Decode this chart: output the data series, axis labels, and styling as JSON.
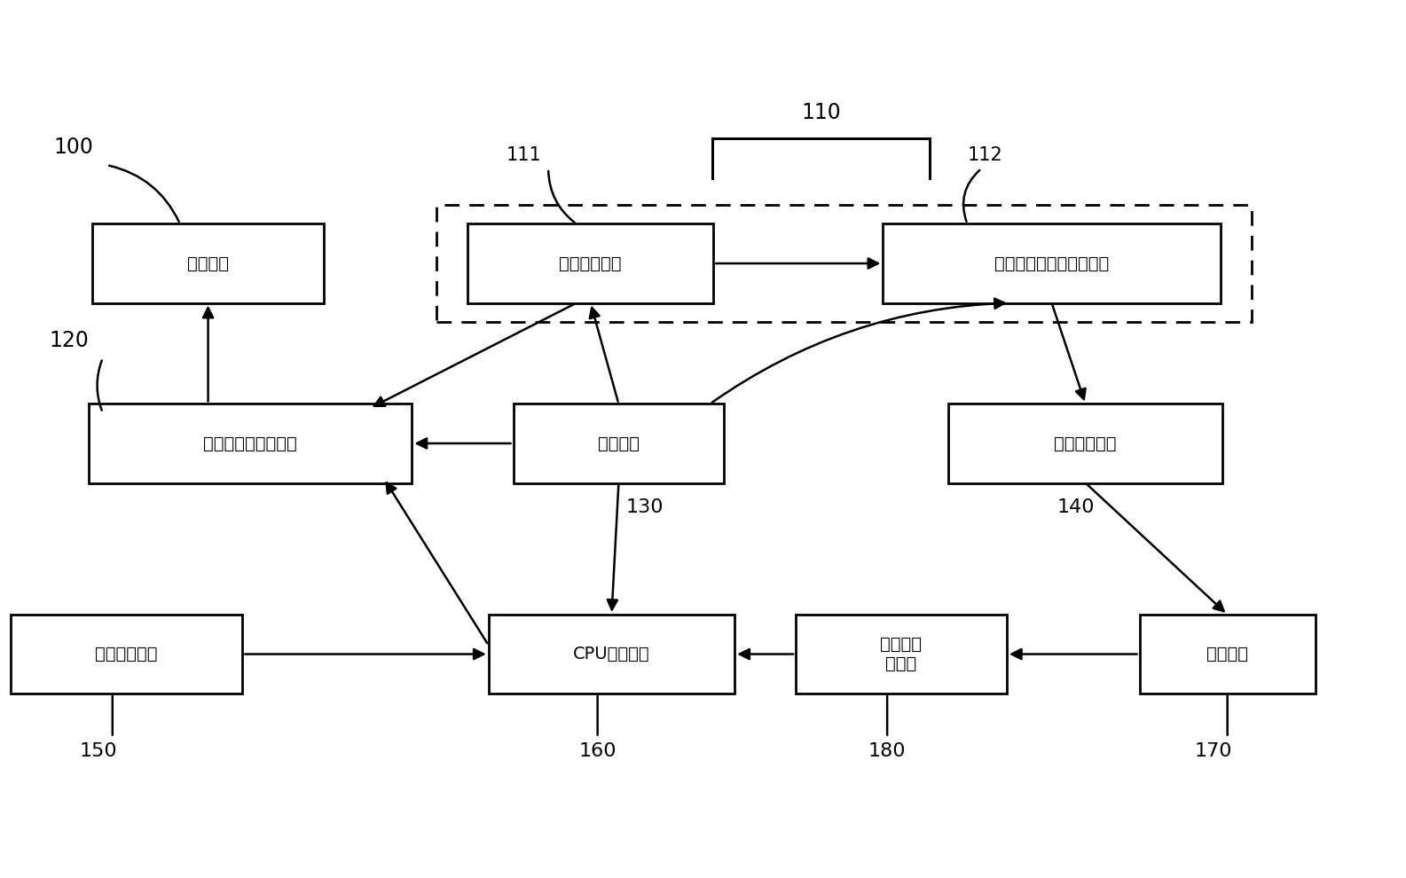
{
  "background_color": "#ffffff",
  "box_params": {
    "display": [
      0.148,
      0.7,
      0.165,
      0.09
    ],
    "plc": [
      0.178,
      0.495,
      0.23,
      0.09
    ],
    "key": [
      0.09,
      0.255,
      0.165,
      0.09
    ],
    "small_amp": [
      0.42,
      0.7,
      0.175,
      0.09
    ],
    "power": [
      0.44,
      0.495,
      0.15,
      0.09
    ],
    "cpu": [
      0.435,
      0.255,
      0.175,
      0.09
    ],
    "wide_amp": [
      0.748,
      0.7,
      0.24,
      0.09
    ],
    "impedance": [
      0.772,
      0.495,
      0.195,
      0.09
    ],
    "detector": [
      0.641,
      0.255,
      0.15,
      0.09
    ],
    "probe": [
      0.873,
      0.255,
      0.125,
      0.09
    ]
  },
  "box_labels": {
    "display": "显示单元",
    "plc": "可编程逻辑控制单元",
    "key": "按键控制单元",
    "small_amp": "小信号放大器",
    "power": "电源单元",
    "cpu": "CPU控制单元",
    "wide_amp": "宽频带线性功率放大电路",
    "impedance": "阻抗匹配电路",
    "detector": "电流电压\n检测器",
    "probe": "溶栓探头"
  }
}
